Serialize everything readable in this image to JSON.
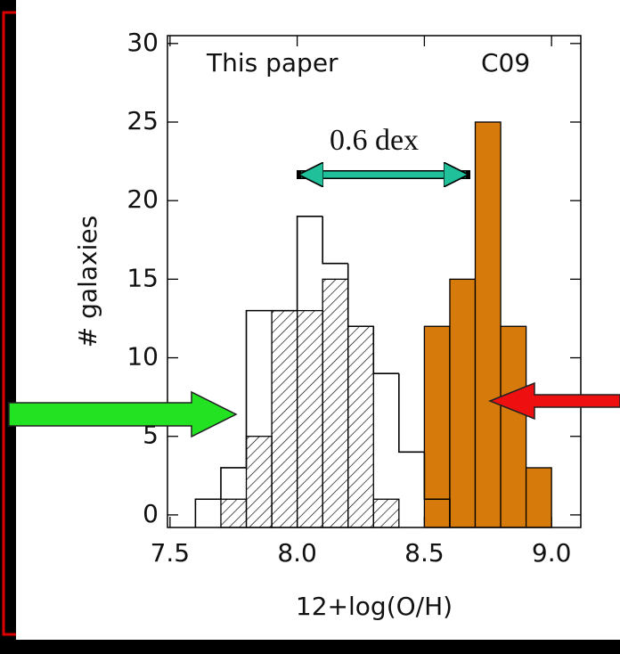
{
  "chart_data": {
    "type": "histogram",
    "xlabel": "12+log(O/H)",
    "ylabel": "# galaxies",
    "annotation": "0.6 dex",
    "xlim": [
      7.49,
      9.115
    ],
    "ylim": [
      -0.8,
      30.5
    ],
    "xticks": [
      7.5,
      {
        "value": 8,
        "label": "8.0"
      },
      8.5,
      {
        "value": 9,
        "label": "9.0"
      }
    ],
    "yticks": [
      0,
      5,
      10,
      15,
      20,
      25,
      30
    ],
    "series": [
      {
        "name": "This paper",
        "style": "outline",
        "color": "#000000",
        "bins": [
          7.6,
          7.7,
          7.8,
          7.9,
          8.0,
          8.1,
          8.2,
          8.3,
          8.4,
          8.5,
          8.6
        ],
        "values": [
          1,
          3,
          13,
          13,
          19,
          16,
          12,
          9,
          4,
          1
        ]
      },
      {
        "style": "hatch",
        "color": "#000000",
        "bins": [
          7.7,
          7.8,
          7.9,
          8.0,
          8.1,
          8.2,
          8.3,
          8.4
        ],
        "values": [
          1,
          5,
          13,
          13,
          15,
          12,
          1
        ]
      },
      {
        "name": "C09",
        "style": "fill",
        "color": "#d67a0c",
        "bins": [
          8.5,
          8.6,
          8.7,
          8.8,
          8.9,
          9.0
        ],
        "values": [
          12,
          15,
          25,
          12,
          3
        ]
      }
    ]
  }
}
